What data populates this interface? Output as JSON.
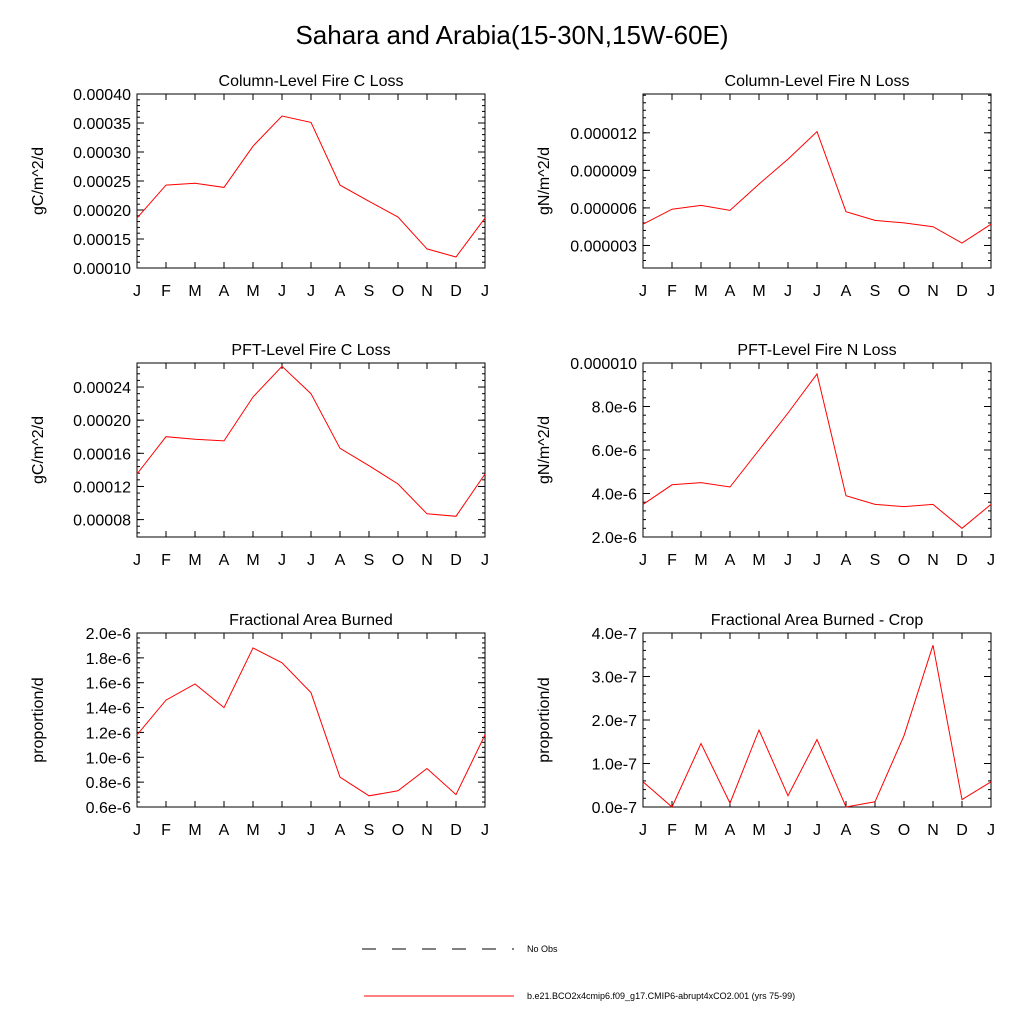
{
  "title": "Sahara and Arabia(15-30N,15W-60E)",
  "colors": {
    "series": "#ff0000",
    "axis": "#000000",
    "obs": "#000000"
  },
  "legend": {
    "obs_label": "No Obs",
    "model_label": "b.e21.BCO2x4cmip6.f09_g17.CMIP6-abrupt4xCO2.001 (yrs 75-99)"
  },
  "chart_data": [
    {
      "type": "line",
      "title": "Column-Level Fire C Loss",
      "ylabel": "gC/m^2/d",
      "x": [
        "J",
        "F",
        "M",
        "A",
        "M",
        "J",
        "J",
        "A",
        "S",
        "O",
        "N",
        "D",
        "J"
      ],
      "ylim": [
        0.0001,
        0.0004
      ],
      "yticks": [
        "0.00010",
        "0.00015",
        "0.00020",
        "0.00025",
        "0.00030",
        "0.00035",
        "0.00040"
      ],
      "ytick_values": [
        0.0001,
        0.00015,
        0.0002,
        0.00025,
        0.0003,
        0.00035,
        0.0004
      ],
      "yminor_step": 1e-05,
      "series": [
        {
          "name": "model",
          "values": [
            0.000186,
            0.000243,
            0.000246,
            0.000239,
            0.00031,
            0.000362,
            0.000351,
            0.000243,
            0.000215,
            0.000188,
            0.000133,
            0.000119,
            0.000186
          ]
        }
      ]
    },
    {
      "type": "line",
      "title": "Column-Level Fire N Loss",
      "ylabel": "gN/m^2/d",
      "x": [
        "J",
        "F",
        "M",
        "A",
        "M",
        "J",
        "J",
        "A",
        "S",
        "O",
        "N",
        "D",
        "J"
      ],
      "ylim": [
        1.2e-06,
        1.51e-05
      ],
      "yticks": [
        "0.000003",
        "0.000006",
        "0.000009",
        "0.000012"
      ],
      "ytick_values": [
        3e-06,
        6e-06,
        9e-06,
        1.2e-05
      ],
      "yminor_step": 6e-07,
      "series": [
        {
          "name": "model",
          "values": [
            4.7e-06,
            5.9e-06,
            6.2e-06,
            5.8e-06,
            7.9e-06,
            9.9e-06,
            1.21e-05,
            5.7e-06,
            5e-06,
            4.8e-06,
            4.5e-06,
            3.2e-06,
            4.7e-06
          ]
        }
      ]
    },
    {
      "type": "line",
      "title": "PFT-Level Fire C Loss",
      "ylabel": "gC/m^2/d",
      "x": [
        "J",
        "F",
        "M",
        "A",
        "M",
        "J",
        "J",
        "A",
        "S",
        "O",
        "N",
        "D",
        "J"
      ],
      "ylim": [
        5.9e-05,
        0.000269
      ],
      "yticks": [
        "0.00008",
        "0.00012",
        "0.00016",
        "0.00020",
        "0.00024"
      ],
      "ytick_values": [
        8e-05,
        0.00012,
        0.00016,
        0.0002,
        0.00024
      ],
      "yminor_step": 8e-06,
      "series": [
        {
          "name": "model",
          "values": [
            0.000135,
            0.00018,
            0.000177,
            0.000175,
            0.000228,
            0.000265,
            0.000232,
            0.000166,
            0.000145,
            0.000123,
            8.7e-05,
            8.4e-05,
            0.000135
          ]
        }
      ]
    },
    {
      "type": "line",
      "title": "PFT-Level Fire N Loss",
      "ylabel": "gN/m^2/d",
      "x": [
        "J",
        "F",
        "M",
        "A",
        "M",
        "J",
        "J",
        "A",
        "S",
        "O",
        "N",
        "D",
        "J"
      ],
      "ylim": [
        2e-06,
        1e-05
      ],
      "yticks": [
        "2.0e-6",
        "4.0e-6",
        "6.0e-6",
        "8.0e-6",
        "0.000010"
      ],
      "ytick_values": [
        2e-06,
        4e-06,
        6e-06,
        8e-06,
        1e-05
      ],
      "yminor_step": 4e-07,
      "series": [
        {
          "name": "model",
          "values": [
            3.5e-06,
            4.4e-06,
            4.5e-06,
            4.3e-06,
            6e-06,
            7.7e-06,
            9.5e-06,
            3.9e-06,
            3.5e-06,
            3.4e-06,
            3.5e-06,
            2.4e-06,
            3.5e-06
          ]
        }
      ]
    },
    {
      "type": "line",
      "title": "Fractional Area Burned",
      "ylabel": "proportion/d",
      "x": [
        "J",
        "F",
        "M",
        "A",
        "M",
        "J",
        "J",
        "A",
        "S",
        "O",
        "N",
        "D",
        "J"
      ],
      "ylim": [
        6e-07,
        2e-06
      ],
      "yticks": [
        "0.6e-6",
        "0.8e-6",
        "1.0e-6",
        "1.2e-6",
        "1.4e-6",
        "1.6e-6",
        "1.8e-6",
        "2.0e-6"
      ],
      "ytick_values": [
        6e-07,
        8e-07,
        1e-06,
        1.2e-06,
        1.4e-06,
        1.6e-06,
        1.8e-06,
        2e-06
      ],
      "yminor_step": 4e-08,
      "series": [
        {
          "name": "model",
          "values": [
            1.18e-06,
            1.46e-06,
            1.59e-06,
            1.4e-06,
            1.88e-06,
            1.76e-06,
            1.52e-06,
            8.4e-07,
            6.9e-07,
            7.3e-07,
            9.1e-07,
            7e-07,
            1.18e-06
          ]
        }
      ]
    },
    {
      "type": "line",
      "title": "Fractional Area Burned - Crop",
      "ylabel": "proportion/d",
      "x": [
        "J",
        "F",
        "M",
        "A",
        "M",
        "J",
        "J",
        "A",
        "S",
        "O",
        "N",
        "D",
        "J"
      ],
      "ylim": [
        0,
        4e-07
      ],
      "yticks": [
        "0.0e-7",
        "1.0e-7",
        "2.0e-7",
        "3.0e-7",
        "4.0e-7"
      ],
      "ytick_values": [
        0,
        1e-07,
        2e-07,
        3e-07,
        4e-07
      ],
      "yminor_step": 2e-08,
      "series": [
        {
          "name": "model",
          "values": [
            5.8e-08,
            0.0,
            1.46e-07,
            9e-09,
            1.77e-07,
            2.6e-08,
            1.55e-07,
            0.0,
            1.2e-08,
            1.64e-07,
            3.72e-07,
            1.7e-08,
            5.8e-08
          ]
        }
      ]
    }
  ]
}
